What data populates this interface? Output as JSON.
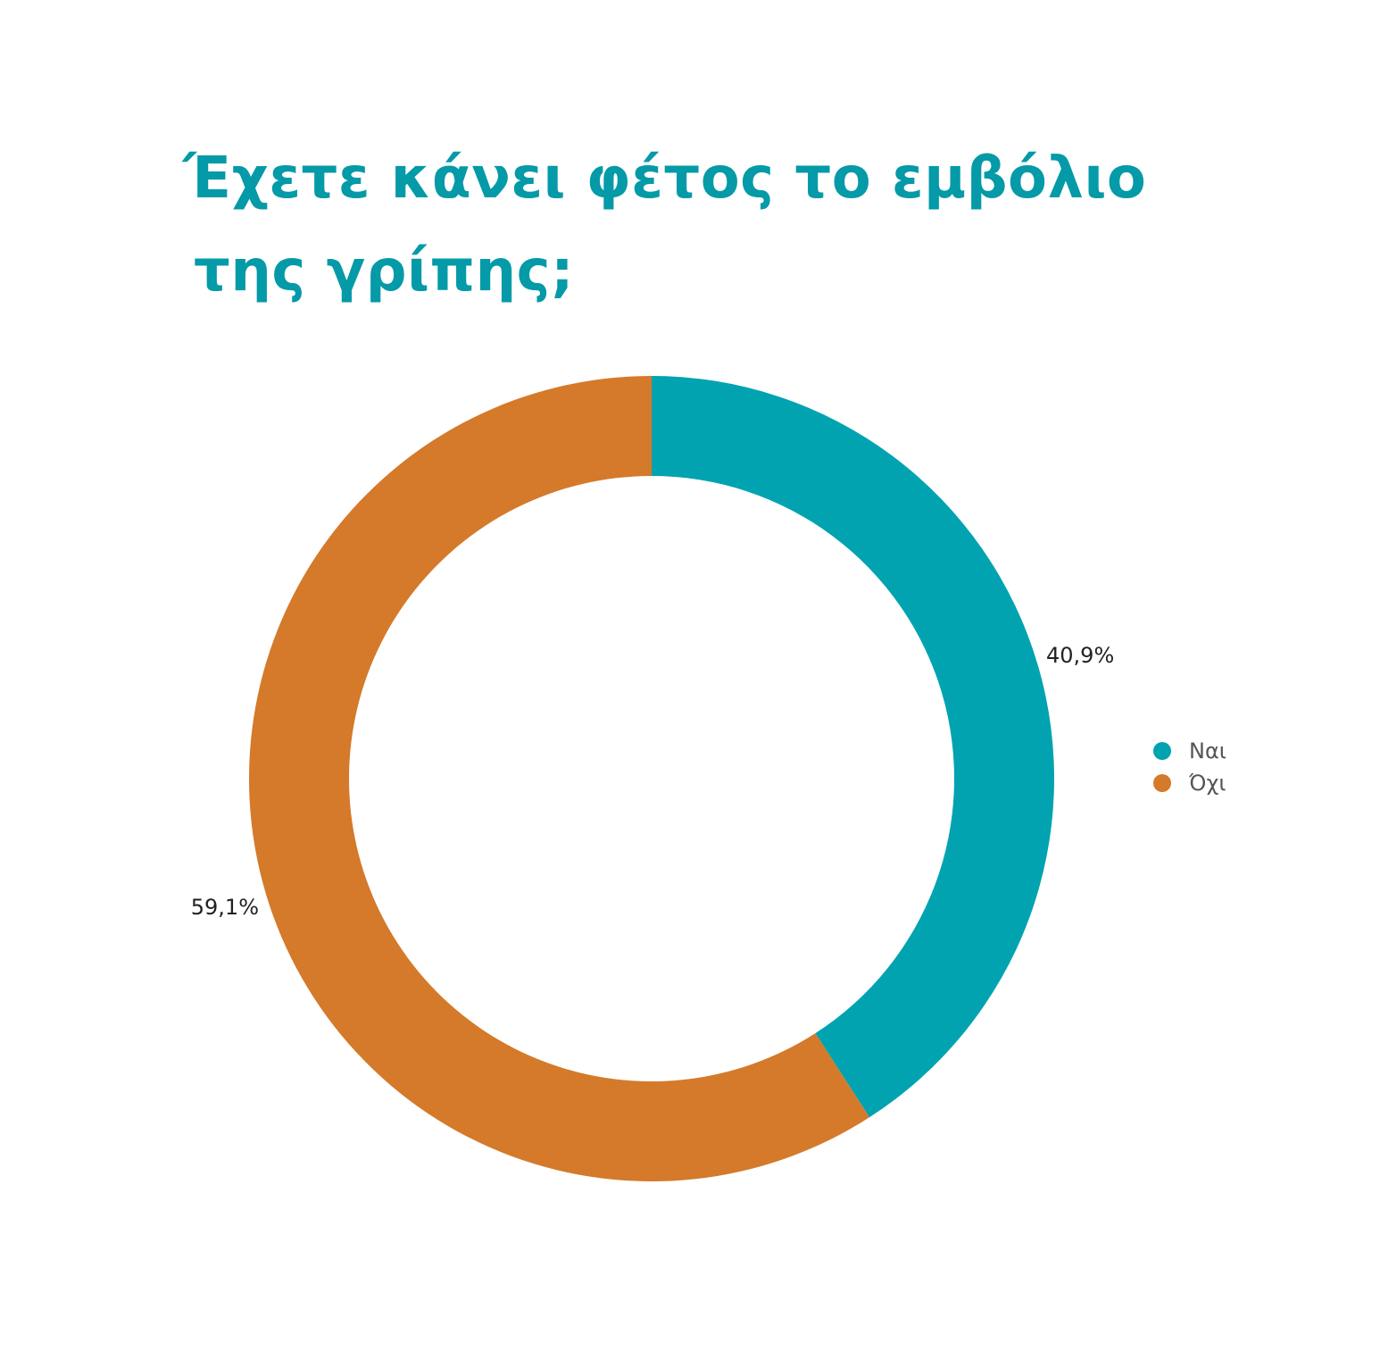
{
  "chart_data": {
    "type": "pie",
    "variant": "donut",
    "title_lines": [
      "Έχετε κάνει φέτος το εμβόλιο",
      "της γρίπης;"
    ],
    "slices": [
      {
        "label": "Ναι",
        "value": 40.9,
        "display": "40,9%",
        "color": "#01a3b1"
      },
      {
        "label": "Όχι",
        "value": 59.1,
        "display": "59,1%",
        "color": "#d47a2a"
      }
    ],
    "start": "12 o'clock, clockwise",
    "legend": {
      "position": "right",
      "items": [
        "Ναι",
        "Όχι"
      ]
    }
  }
}
